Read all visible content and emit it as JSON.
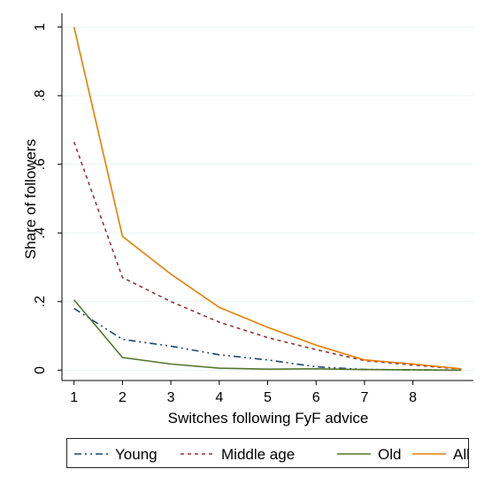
{
  "chart_data": {
    "type": "line",
    "xlabel": "Switches following FyF advice",
    "ylabel": "Share of followers",
    "x_ticks": [
      "1",
      "2",
      "3",
      "4",
      "5",
      "6",
      "7",
      "8"
    ],
    "y_ticks": [
      "0",
      ".2",
      ".4",
      ".6",
      ".8",
      "1"
    ],
    "xlim": [
      0.75,
      9.25
    ],
    "ylim": [
      -0.03,
      1.04
    ],
    "x": [
      1,
      2,
      3,
      4,
      5,
      6,
      7,
      8,
      9
    ],
    "series": [
      {
        "name": "Young",
        "color": "#1a476f",
        "dash": "8 4 2 4 2 4",
        "values": [
          0.18,
          0.09,
          0.07,
          0.045,
          0.03,
          0.01,
          0.002,
          0.001,
          0.0
        ]
      },
      {
        "name": "Middle age",
        "color": "#90353b",
        "dash": "4 4",
        "values": [
          0.665,
          0.27,
          0.2,
          0.14,
          0.095,
          0.06,
          0.028,
          0.015,
          0.003
        ]
      },
      {
        "name": "Old",
        "color": "#55752f",
        "dash": "",
        "values": [
          0.205,
          0.037,
          0.018,
          0.006,
          0.003,
          0.004,
          0.002,
          0.001,
          0.0
        ]
      },
      {
        "name": "All",
        "color": "#e37e00",
        "dash": "",
        "values": [
          1.0,
          0.39,
          0.28,
          0.183,
          0.125,
          0.073,
          0.03,
          0.018,
          0.004
        ]
      }
    ],
    "grid": true,
    "legend_position": "bottom"
  }
}
